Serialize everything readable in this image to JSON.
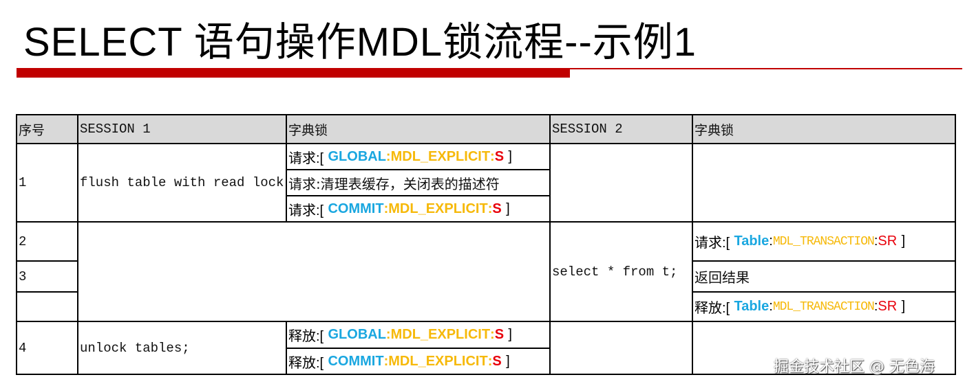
{
  "title": "SELECT 语句操作MDL锁流程--示例1",
  "header": [
    "序号",
    "SESSION 1",
    "字典锁",
    "SESSION 2",
    "字典锁"
  ],
  "rows": {
    "r1": {
      "no": "1",
      "session1": "flush table with read lock;",
      "lock_a": {
        "prefix": "请求:[ ",
        "obj": "GLOBAL",
        "sep1": ":",
        "type": "MDL_EXPLICIT",
        "sep2": ":",
        "mode": "S",
        "suffix": " ]"
      },
      "lock_b": "请求:清理表缓存，关闭表的描述符",
      "lock_c": {
        "prefix": "请求:[ ",
        "obj": "COMMIT",
        "sep1": ":",
        "type": "MDL_EXPLICIT",
        "sep2": ":",
        "mode": "S",
        "suffix": " ]"
      }
    },
    "r2": {
      "no": "2",
      "session2": "select * from t;",
      "lock": {
        "prefix": "请求:[ ",
        "obj": "Table",
        "sep1": ":",
        "type": "MDL_TRANSACTION",
        "sep2": ":",
        "mode": "SR",
        "suffix": " ]"
      }
    },
    "r3": {
      "no": "3",
      "lock": "返回结果"
    },
    "r3b": {
      "lock": {
        "prefix": "释放:[ ",
        "obj": "Table",
        "sep1": ":",
        "type": "MDL_TRANSACTION",
        "sep2": ":",
        "mode": "SR",
        "suffix": " ]"
      }
    },
    "r4": {
      "no": "4",
      "session1": "unlock tables;",
      "lock_a": {
        "prefix": "释放:[ ",
        "obj": "GLOBAL",
        "sep1": ":",
        "type": "MDL_EXPLICIT",
        "sep2": ":",
        "mode": "S",
        "suffix": " ]"
      },
      "lock_b": {
        "prefix": "释放:[ ",
        "obj": "COMMIT",
        "sep1": ":",
        "type": "MDL_EXPLICIT",
        "sep2": ":",
        "mode": "S",
        "suffix": " ]"
      }
    }
  },
  "watermark": "掘金技术社区 @ 无色海",
  "colors": {
    "accent_bar": "#c00000",
    "object": "#1aa7e0",
    "lock_type": "#f6b90a",
    "lock_mode": "#e8000b",
    "header_bg": "#d9d9d9"
  }
}
